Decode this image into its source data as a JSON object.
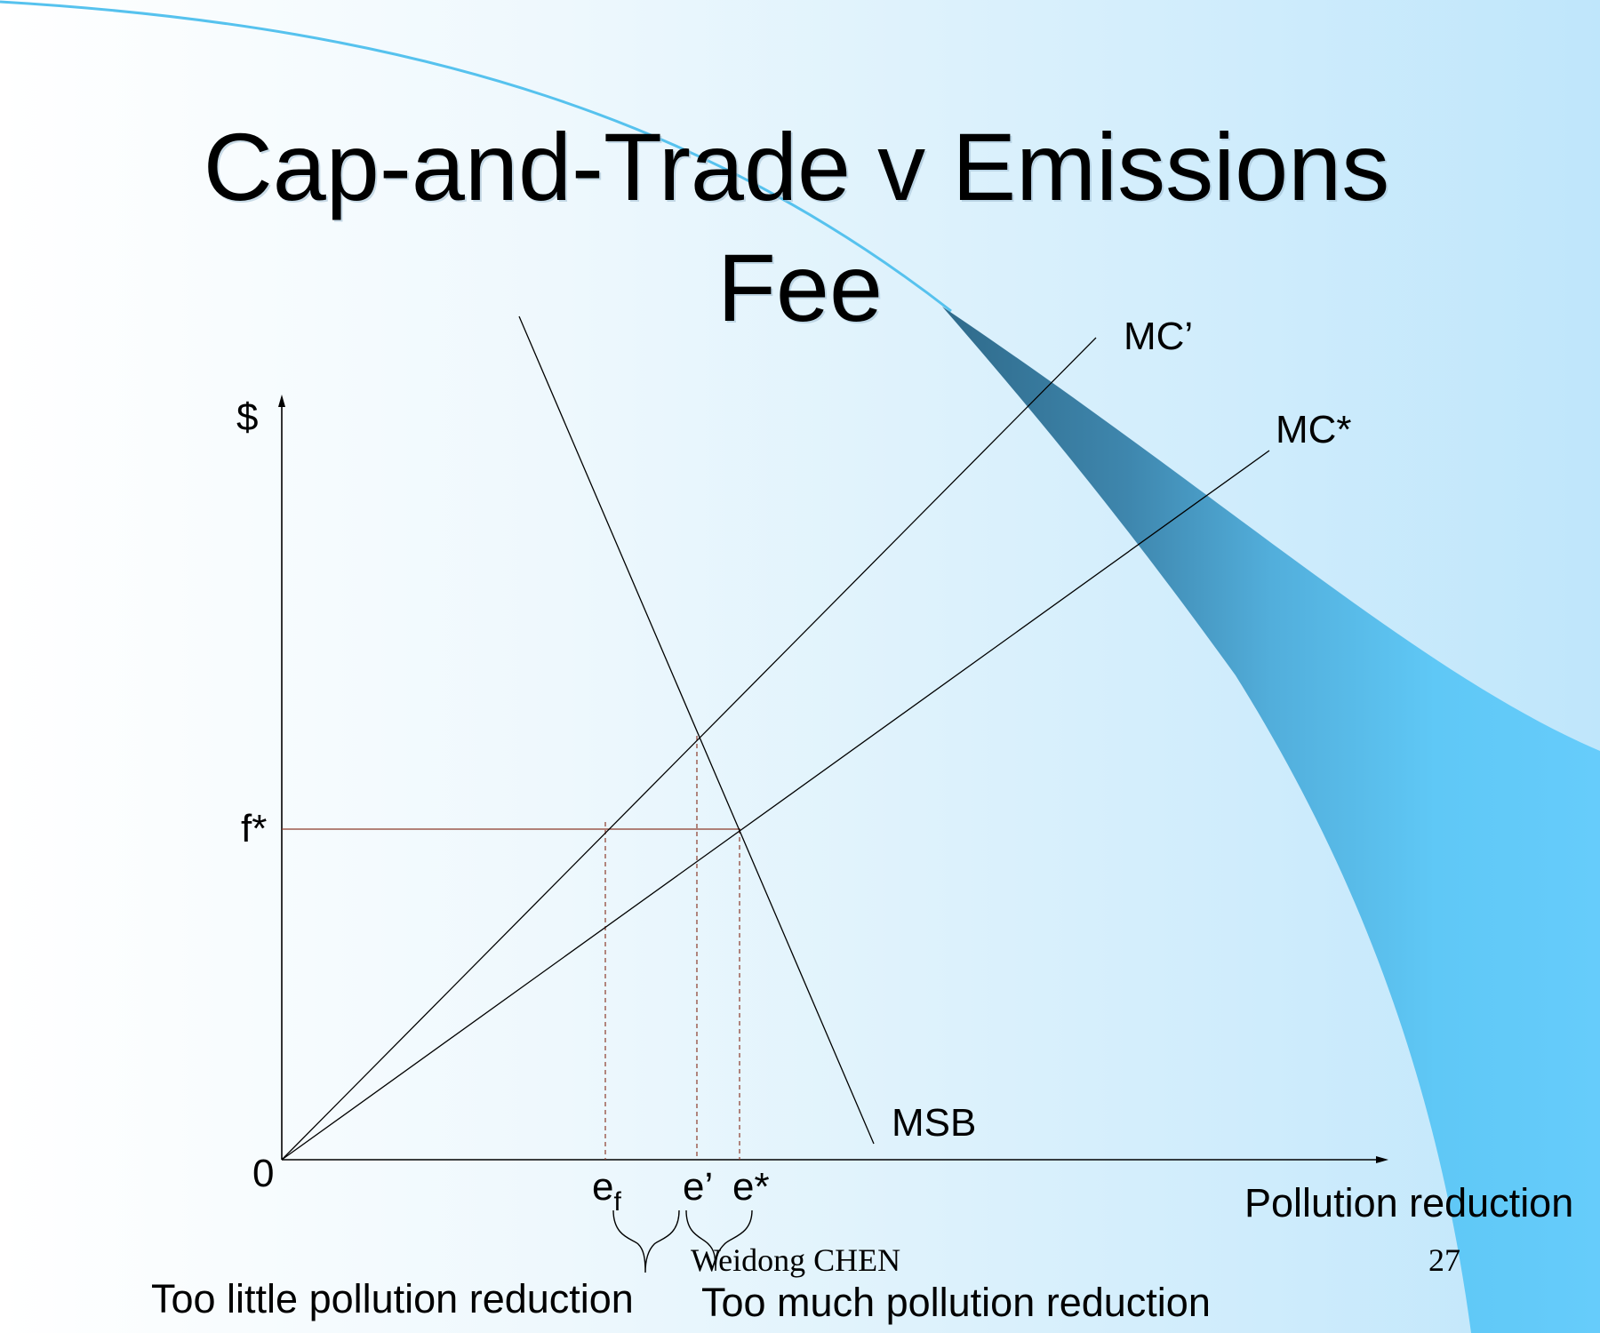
{
  "slide": {
    "title_line_1": "Cap-and-Trade v Emissions",
    "title_line_2": "Fee",
    "footer_author": "Weidong CHEN",
    "slide_number": "27"
  },
  "diagram": {
    "y_axis_label": "$",
    "origin_label": "0",
    "x_axis_label": "Pollution reduction",
    "fee_label": "f*",
    "curves": {
      "mc_prime": "MC’",
      "mc_star": "MC*",
      "msb": "MSB"
    },
    "points": {
      "e_f_base": "e",
      "e_f_sub": "f",
      "e_prime": "e’",
      "e_star": "e*"
    },
    "annotations": {
      "too_little": "Too little pollution reduction",
      "too_much": "Too much pollution reduction"
    }
  },
  "colors": {
    "background_light": "#ffffff",
    "background_blue": "#bfe6fb",
    "band_dark": "#2f6a8a",
    "band_bright": "#5fcaf7",
    "guide_line": "#8b3a2a",
    "curve_line": "#000000"
  }
}
